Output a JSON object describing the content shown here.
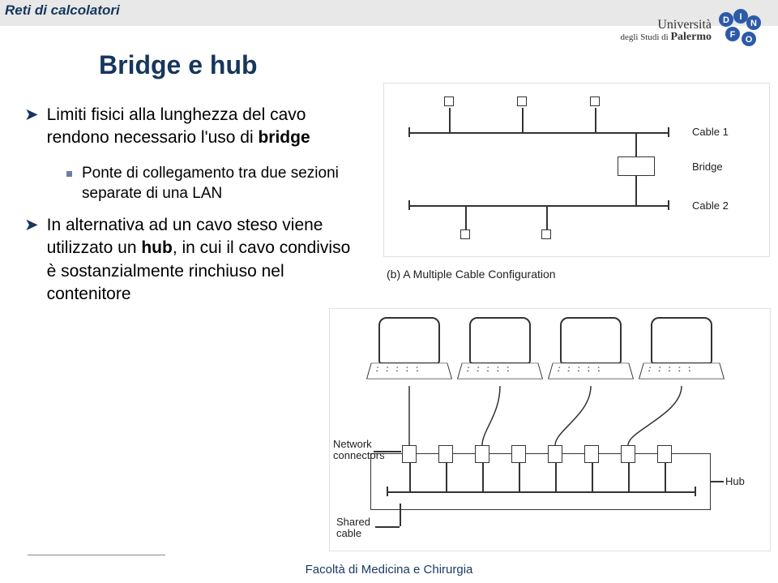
{
  "header": {
    "course": "Reti di calcolatori"
  },
  "university": {
    "line1": "Università",
    "line2_prefix": "degli Studi di",
    "line2_b": "Palermo"
  },
  "slide": {
    "title": "Bridge e hub"
  },
  "bullets": [
    {
      "level": 1,
      "html": "Limiti fisici alla lunghezza del cavo rendono necessario l'uso di <b class='kw'>bridge</b>"
    },
    {
      "level": 2,
      "html": "Ponte di collegamento tra due sezioni separate di una LAN"
    },
    {
      "level": 1,
      "html": "In alternativa ad un cavo steso viene utilizzato un <b class='kw'>hub</b>, in cui il cavo condiviso è sostanzialmente rinchiuso nel contenitore"
    }
  ],
  "diagramA": {
    "labels": {
      "cable1": "Cable 1",
      "bridge": "Bridge",
      "cable2": "Cable 2"
    }
  },
  "diagramB": {
    "caption": "(b) A Multiple Cable Configuration",
    "labels": {
      "network_connectors": "Network\nconnectors",
      "shared_cable": "Shared\ncable",
      "hub": "Hub"
    }
  },
  "footer": {
    "text": "Facoltà di Medicina e Chirurgia"
  },
  "colors": {
    "header_text": "#16365d",
    "bullet_arrow": "#16365d",
    "bullet_square": "#6d7fa0",
    "footer_text": "#1a3a66"
  }
}
